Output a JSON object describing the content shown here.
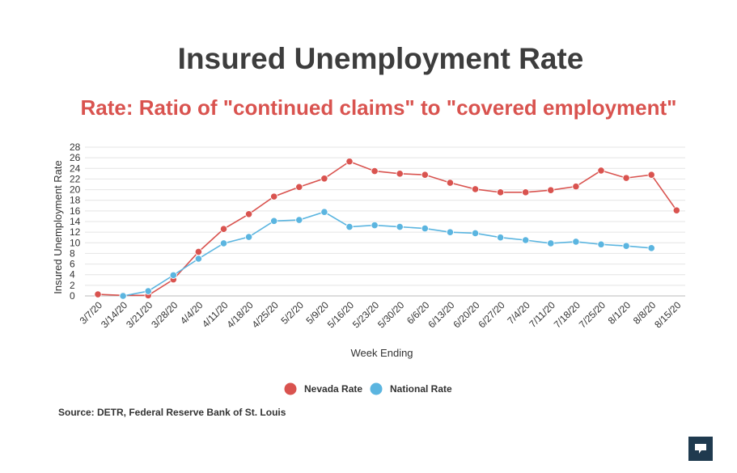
{
  "chart_data": {
    "type": "line",
    "title": "Insured Unemployment Rate",
    "subtitle": "Rate: Ratio of \"continued claims\" to \"covered employment\"",
    "xlabel": "Week Ending",
    "ylabel": "Insured Unemployment Rate",
    "ylim": [
      0,
      28
    ],
    "yticks": [
      0,
      2,
      4,
      6,
      8,
      10,
      12,
      14,
      16,
      18,
      20,
      22,
      24,
      26,
      28
    ],
    "grid": true,
    "legend_position": "bottom",
    "categories": [
      "3/7/20",
      "3/14/20",
      "3/21/20",
      "3/28/20",
      "4/4/20",
      "4/11/20",
      "4/18/20",
      "4/25/20",
      "5/2/20",
      "5/9/20",
      "5/16/20",
      "5/23/20",
      "5/30/20",
      "6/6/20",
      "6/13/20",
      "6/20/20",
      "6/27/20",
      "7/4/20",
      "7/11/20",
      "7/18/20",
      "7/25/20",
      "8/1/20",
      "8/8/20",
      "8/15/20"
    ],
    "series": [
      {
        "name": "Nevada Rate",
        "color": "#d9534f",
        "values": [
          0.3,
          0.1,
          0.1,
          3.1,
          8.3,
          12.6,
          15.4,
          18.7,
          20.5,
          22.1,
          25.3,
          23.5,
          23.0,
          22.8,
          21.3,
          20.1,
          19.5,
          19.5,
          19.9,
          20.6,
          23.6,
          22.2,
          22.8,
          16.1
        ]
      },
      {
        "name": "National Rate",
        "color": "#5bb5e0",
        "values": [
          null,
          0.0,
          0.9,
          3.9,
          7.0,
          9.9,
          11.1,
          14.1,
          14.3,
          15.8,
          13.0,
          13.3,
          13.0,
          12.7,
          12.0,
          11.8,
          11.0,
          10.5,
          9.9,
          10.2,
          9.7,
          9.4,
          9.0,
          null
        ]
      }
    ]
  },
  "source": "Source: DETR, Federal Reserve Bank of St. Louis",
  "logo_icon": "speech-bubble-logo-icon"
}
